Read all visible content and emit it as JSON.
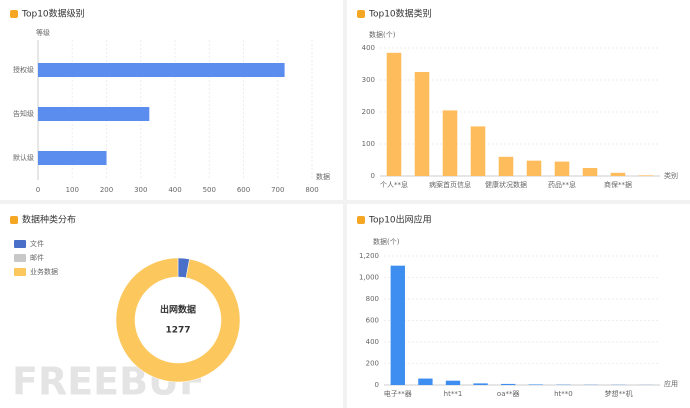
{
  "chart_data": [
    {
      "type": "hbar",
      "title": "Top10数据级别",
      "y_axis_label": "等级",
      "x_axis_label": "数据",
      "categories": [
        "授权级",
        "告知级",
        "默认级"
      ],
      "values": [
        720,
        325,
        200
      ],
      "color": "#5b8def",
      "xlim": [
        0,
        800
      ],
      "xticks": [
        0,
        100,
        200,
        300,
        400,
        500,
        600,
        700,
        800
      ],
      "grid": true
    },
    {
      "type": "bar",
      "title": "Top10数据类别",
      "y_axis_label": "数据(个)",
      "x_axis_label": "类别",
      "categories": [
        "个人**息",
        null,
        "病案首页信息",
        null,
        "健康状况数据",
        null,
        "药品**息",
        null,
        "商保**据",
        null
      ],
      "values": [
        385,
        325,
        205,
        155,
        60,
        48,
        45,
        25,
        10,
        2
      ],
      "color": "#ffbc5c",
      "ylim": [
        0,
        400
      ],
      "yticks": [
        0,
        100,
        200,
        300,
        400
      ],
      "grid": true
    },
    {
      "type": "pie",
      "title": "数据种类分布",
      "center_label": "出网数据",
      "total": 1277,
      "categories": [
        "文件",
        "邮件",
        "业务数据"
      ],
      "values": [
        38,
        0,
        1239
      ],
      "colors": [
        "#4a6fc8",
        "#c8c8c8",
        "#fcc85e"
      ],
      "legend": "top-left"
    },
    {
      "type": "bar",
      "title": "Top10出网应用",
      "y_axis_label": "数据(个)",
      "x_axis_label": "应用",
      "categories": [
        "电子**器",
        null,
        "ht**1",
        null,
        "oa**器",
        null,
        "ht**0",
        null,
        "梦想**机",
        null
      ],
      "values": [
        1110,
        60,
        40,
        15,
        10,
        5,
        3,
        2,
        2,
        1
      ],
      "color": "#3d8ef0",
      "ylim": [
        0,
        1200
      ],
      "yticks": [
        0,
        200,
        400,
        600,
        800,
        {
          "value": 1000,
          "label": "1,000"
        },
        {
          "value": 1200,
          "label": "1,200"
        }
      ],
      "grid": true
    }
  ],
  "watermark": "FREEBUF"
}
